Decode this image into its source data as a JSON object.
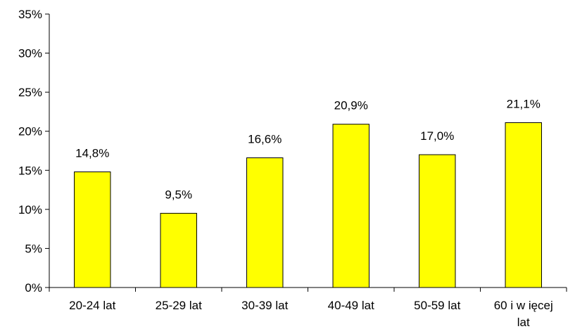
{
  "chart_data": {
    "type": "bar",
    "categories": [
      "20-24 lat",
      "25-29 lat",
      "30-39 lat",
      "40-49 lat",
      "50-59 lat",
      "60 i w ięcej lat"
    ],
    "category_lines": [
      [
        "20-24 lat"
      ],
      [
        "25-29 lat"
      ],
      [
        "30-39 lat"
      ],
      [
        "40-49 lat"
      ],
      [
        "50-59 lat"
      ],
      [
        "60 i w ięcej",
        "lat"
      ]
    ],
    "values": [
      14.8,
      9.5,
      16.6,
      20.9,
      17.0,
      21.1
    ],
    "data_labels": [
      "14,8%",
      "9,5%",
      "16,6%",
      "20,9%",
      "17,0%",
      "21,1%"
    ],
    "y_ticks": [
      0,
      5,
      10,
      15,
      20,
      25,
      30,
      35
    ],
    "y_tick_labels": [
      "0%",
      "5%",
      "10%",
      "15%",
      "20%",
      "25%",
      "30%",
      "35%"
    ],
    "ylim": [
      0,
      35
    ],
    "grid": false,
    "legend": "none",
    "bar_color": "#ffff00",
    "bar_stroke": "#000000",
    "title": "",
    "xlabel": "",
    "ylabel": ""
  }
}
